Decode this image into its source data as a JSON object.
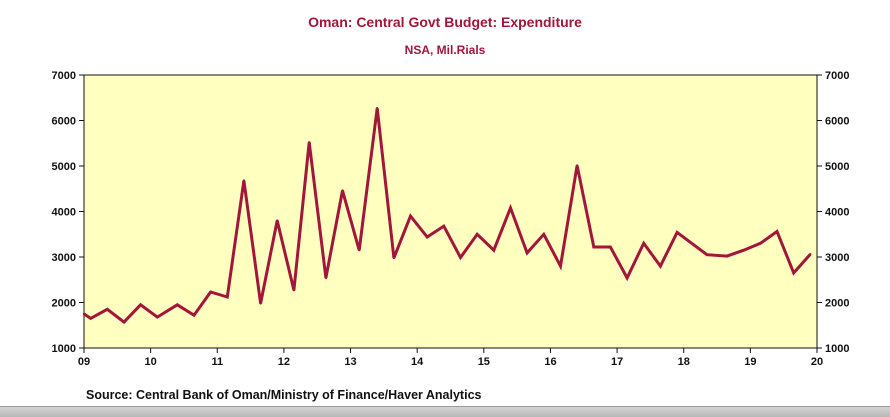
{
  "chart_data": {
    "type": "line",
    "title": "Oman: Central Govt Budget: Expenditure",
    "subtitle": "NSA, Mil.Rials",
    "source": "Source:  Central Bank of Oman/Ministry of Finance/Haver Analytics",
    "ylim": [
      1000,
      7000
    ],
    "yticks": [
      1000,
      2000,
      3000,
      4000,
      5000,
      6000,
      7000
    ],
    "ytick_labels": [
      "1000",
      "2000",
      "3000",
      "4000",
      "5000",
      "6000",
      "7000"
    ],
    "xlim": [
      2009,
      2020
    ],
    "xticks": [
      2009,
      2010,
      2011,
      2012,
      2013,
      2014,
      2015,
      2016,
      2017,
      2018,
      2019,
      2020
    ],
    "xtick_labels": [
      "09",
      "10",
      "11",
      "12",
      "13",
      "14",
      "15",
      "16",
      "17",
      "18",
      "19",
      "20"
    ],
    "grid": false,
    "dual_y_axis": true,
    "colors": {
      "line": "#a1163a",
      "plot_background": "#ffffc0",
      "title": "#a1163a"
    },
    "series": [
      {
        "x": [
          2009.0,
          2009.1,
          2009.35,
          2009.6,
          2009.85,
          2010.1,
          2010.4,
          2010.65,
          2010.9,
          2011.15,
          2011.4,
          2011.65,
          2011.9,
          2012.15,
          2012.38,
          2012.63,
          2012.88,
          2013.13,
          2013.4,
          2013.65,
          2013.9,
          2014.15,
          2014.4,
          2014.65,
          2014.9,
          2015.15,
          2015.4,
          2015.65,
          2015.9,
          2016.15,
          2016.4,
          2016.65,
          2016.9,
          2017.15,
          2017.4,
          2017.65,
          2017.9,
          2018.35,
          2018.65,
          2018.9,
          2019.15,
          2019.4,
          2019.65,
          2019.9
        ],
        "y": [
          1750,
          1650,
          1850,
          1570,
          1950,
          1680,
          1950,
          1720,
          2230,
          2120,
          4680,
          1980,
          3800,
          2270,
          5520,
          2540,
          4460,
          3150,
          6270,
          2980,
          3900,
          3440,
          3680,
          2990,
          3500,
          3150,
          4080,
          3090,
          3500,
          2800,
          5010,
          3220,
          3220,
          2540,
          3300,
          2800,
          3540,
          3050,
          3020,
          3150,
          3300,
          3560,
          2650,
          3060
        ]
      }
    ]
  }
}
